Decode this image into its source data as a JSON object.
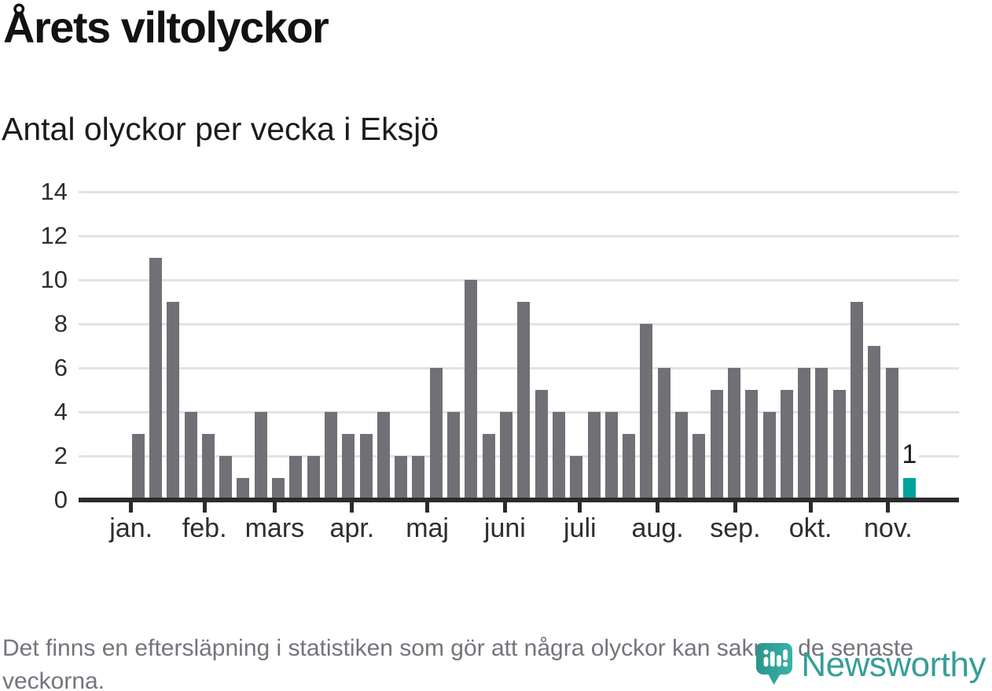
{
  "title": "Årets viltolyckor",
  "subtitle": "Antal olyckor per vecka i Eksjö",
  "footer_note": "Det finns en eftersläpning i statistiken som gör att några olyckor kan saknas de senaste veckorna.",
  "logo": {
    "wordmark": "Newsworthy",
    "icon": "newsworthy-pin-barchart-icon"
  },
  "colors": {
    "bar": "#707076",
    "highlight": "#00a39a",
    "grid": "#e3e3e5",
    "axis": "#2b2b2e",
    "axis_text": "#2e2e2e",
    "title": "#121212",
    "subtitle": "#1c1c1c",
    "footer": "#74747b",
    "brand": "#379e97"
  },
  "chart_data": {
    "type": "bar",
    "title": "Årets viltolyckor",
    "subtitle": "Antal olyckor per vecka i Eksjö",
    "xlabel": "",
    "ylabel": "",
    "x_unit": "vecka",
    "ylim": [
      0,
      14
    ],
    "yticks": [
      0,
      2,
      4,
      6,
      8,
      10,
      12,
      14
    ],
    "grid": "horizontal",
    "legend": "none",
    "bar_color": "#707076",
    "values": [
      3,
      11,
      9,
      4,
      3,
      2,
      1,
      4,
      1,
      2,
      2,
      4,
      3,
      3,
      4,
      2,
      2,
      6,
      4,
      10,
      3,
      4,
      9,
      5,
      4,
      2,
      4,
      4,
      3,
      8,
      6,
      4,
      3,
      5,
      6,
      5,
      4,
      5,
      6,
      6,
      5,
      9,
      7,
      6,
      1
    ],
    "highlight": {
      "index": 44,
      "value": 1,
      "label": "1",
      "color": "#00a39a"
    },
    "months": [
      {
        "label": "jan.",
        "week": 0.1
      },
      {
        "label": "feb.",
        "week": 4.29
      },
      {
        "label": "mars",
        "week": 8.29
      },
      {
        "label": "apr.",
        "week": 12.71
      },
      {
        "label": "maj",
        "week": 17.0
      },
      {
        "label": "juni",
        "week": 21.43
      },
      {
        "label": "juli",
        "week": 25.71
      },
      {
        "label": "aug.",
        "week": 30.14
      },
      {
        "label": "sep.",
        "week": 34.57
      },
      {
        "label": "okt.",
        "week": 38.86
      },
      {
        "label": "nov.",
        "week": 43.29
      }
    ]
  }
}
